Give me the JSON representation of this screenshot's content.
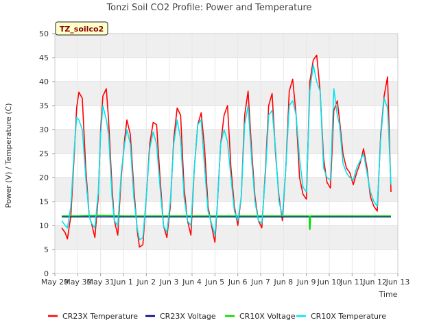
{
  "chart_data": {
    "type": "line",
    "title": "Tonzi Soil CO2 Profile: Power and Temperature",
    "tag": "TZ_soilco2",
    "xlabel": "Time",
    "ylabel": "Power (V) / Temperature (C)",
    "xlim": [
      0,
      15
    ],
    "ylim": [
      0,
      50
    ],
    "yticks": [
      0,
      5,
      10,
      15,
      20,
      25,
      30,
      35,
      40,
      45,
      50
    ],
    "xticks": [
      0,
      1,
      2,
      3,
      4,
      5,
      6,
      7,
      8,
      9,
      10,
      11,
      12,
      13,
      14,
      15
    ],
    "xtick_labels": [
      "May 29",
      "May 30",
      "May 31",
      "Jun 1",
      "Jun 2",
      "Jun 3",
      "Jun 4",
      "Jun 5",
      "Jun 6",
      "Jun 7",
      "Jun 8",
      "Jun 9",
      "Jun 10",
      "Jun 11",
      "Jun 12",
      "Jun 13"
    ],
    "grid": "banded",
    "legend_position": "bottom",
    "series": [
      {
        "name": "CR23X Temperature",
        "color": "#ff0000",
        "x": [
          0.3,
          0.45,
          0.55,
          0.7,
          0.85,
          0.95,
          1.05,
          1.2,
          1.35,
          1.5,
          1.6,
          1.75,
          1.9,
          2.0,
          2.1,
          2.25,
          2.35,
          2.5,
          2.6,
          2.75,
          2.9,
          3.05,
          3.15,
          3.3,
          3.45,
          3.6,
          3.7,
          3.85,
          4.0,
          4.15,
          4.3,
          4.45,
          4.6,
          4.75,
          4.9,
          5.05,
          5.2,
          5.35,
          5.5,
          5.65,
          5.8,
          5.95,
          6.1,
          6.25,
          6.4,
          6.55,
          6.7,
          6.85,
          7.0,
          7.1,
          7.25,
          7.4,
          7.55,
          7.7,
          7.85,
          8.0,
          8.15,
          8.3,
          8.45,
          8.6,
          8.75,
          8.9,
          9.05,
          9.2,
          9.35,
          9.5,
          9.65,
          9.8,
          9.95,
          10.1,
          10.25,
          10.4,
          10.55,
          10.7,
          10.85,
          11.0,
          11.15,
          11.3,
          11.45,
          11.6,
          11.75,
          11.9,
          12.05,
          12.2,
          12.35,
          12.45,
          12.6,
          12.75,
          12.9,
          13.05,
          13.2,
          13.35,
          13.5,
          13.65,
          13.8,
          13.95,
          14.1,
          14.25,
          14.4,
          14.55,
          14.7
        ],
        "y": [
          9.5,
          8.5,
          7.2,
          12.0,
          25.0,
          34.5,
          37.8,
          36.5,
          22.0,
          12.0,
          10.5,
          7.5,
          16.0,
          30.0,
          37.0,
          38.5,
          32.0,
          18.0,
          11.0,
          8.0,
          20.0,
          28.0,
          32.0,
          29.0,
          18.0,
          9.0,
          5.5,
          6.0,
          16.0,
          27.0,
          31.5,
          31.0,
          20.0,
          10.0,
          7.5,
          14.0,
          28.0,
          34.5,
          33.0,
          18.0,
          11.0,
          8.0,
          22.0,
          31.0,
          33.5,
          26.0,
          14.0,
          10.0,
          6.5,
          14.0,
          27.0,
          33.0,
          35.0,
          22.0,
          14.0,
          10.0,
          16.0,
          33.0,
          38.0,
          26.0,
          16.0,
          11.0,
          9.5,
          21.0,
          35.0,
          37.5,
          25.0,
          16.0,
          11.0,
          22.0,
          38.0,
          40.5,
          33.0,
          20.0,
          16.5,
          15.5,
          40.0,
          44.5,
          45.5,
          38.0,
          24.0,
          19.0,
          17.8,
          34.0,
          36.0,
          32.0,
          25.0,
          22.0,
          21.0,
          18.5,
          21.0,
          23.0,
          26.0,
          22.0,
          16.0,
          14.0,
          13.0,
          29.0,
          37.0,
          41.0,
          17.0
        ]
      },
      {
        "name": "CR23X Voltage",
        "color": "#00008b",
        "x": [
          0.3,
          14.7
        ],
        "y": [
          11.8,
          11.8
        ]
      },
      {
        "name": "CR10X Voltage",
        "color": "#00dd00",
        "x": [
          0.3,
          1.0,
          2.0,
          3.0,
          4.0,
          5.0,
          6.0,
          7.0,
          8.0,
          9.0,
          10.0,
          11.0,
          11.12,
          11.14,
          11.16,
          11.18,
          11.3,
          12.0,
          13.0,
          14.0,
          14.7
        ],
        "y": [
          12.0,
          12.0,
          12.1,
          12.0,
          12.0,
          12.0,
          12.0,
          12.0,
          12.0,
          12.0,
          12.0,
          12.0,
          12.0,
          9.2,
          9.2,
          12.0,
          12.0,
          12.0,
          12.0,
          12.0,
          12.0
        ]
      },
      {
        "name": "CR10X Temperature",
        "color": "#00e5ee",
        "x": [
          0.3,
          0.45,
          0.55,
          0.7,
          0.85,
          0.95,
          1.05,
          1.2,
          1.35,
          1.5,
          1.6,
          1.75,
          1.9,
          2.0,
          2.1,
          2.25,
          2.35,
          2.5,
          2.6,
          2.75,
          2.9,
          3.05,
          3.15,
          3.3,
          3.45,
          3.6,
          3.7,
          3.85,
          4.0,
          4.15,
          4.3,
          4.45,
          4.6,
          4.75,
          4.9,
          5.05,
          5.2,
          5.35,
          5.5,
          5.65,
          5.8,
          5.95,
          6.1,
          6.25,
          6.4,
          6.55,
          6.7,
          6.85,
          7.0,
          7.1,
          7.25,
          7.4,
          7.55,
          7.7,
          7.85,
          8.0,
          8.15,
          8.3,
          8.45,
          8.6,
          8.75,
          8.9,
          9.05,
          9.2,
          9.35,
          9.5,
          9.65,
          9.8,
          9.95,
          10.1,
          10.25,
          10.4,
          10.55,
          10.7,
          10.85,
          11.0,
          11.15,
          11.3,
          11.45,
          11.6,
          11.75,
          11.9,
          12.05,
          12.2,
          12.35,
          12.45,
          12.6,
          12.75,
          12.9,
          13.05,
          13.2,
          13.35,
          13.5,
          13.65,
          13.8,
          13.95,
          14.1,
          14.25,
          14.4,
          14.55,
          14.7
        ],
        "y": [
          11.0,
          10.0,
          9.5,
          14.0,
          26.0,
          32.5,
          32.0,
          30.0,
          20.0,
          12.0,
          10.5,
          9.5,
          17.0,
          29.0,
          35.0,
          32.0,
          29.0,
          16.0,
          11.0,
          10.0,
          21.0,
          27.0,
          30.0,
          27.0,
          16.0,
          9.5,
          7.0,
          7.5,
          16.0,
          26.0,
          29.5,
          27.0,
          18.0,
          10.0,
          8.5,
          15.0,
          27.0,
          32.0,
          28.0,
          16.0,
          11.0,
          10.0,
          22.0,
          31.0,
          32.0,
          22.0,
          13.0,
          10.5,
          8.0,
          14.0,
          27.0,
          30.0,
          27.5,
          20.0,
          13.0,
          11.0,
          16.0,
          31.0,
          35.0,
          24.0,
          15.0,
          11.0,
          10.5,
          20.0,
          33.0,
          34.0,
          26.0,
          15.0,
          12.0,
          22.0,
          35.0,
          36.0,
          33.0,
          24.0,
          18.0,
          17.0,
          38.0,
          43.5,
          40.0,
          38.0,
          22.0,
          20.0,
          19.5,
          38.5,
          33.0,
          31.0,
          23.0,
          21.0,
          20.0,
          19.5,
          22.0,
          23.5,
          25.0,
          21.0,
          17.0,
          15.0,
          14.0,
          28.0,
          36.5,
          34.5,
          18.5
        ]
      }
    ]
  }
}
